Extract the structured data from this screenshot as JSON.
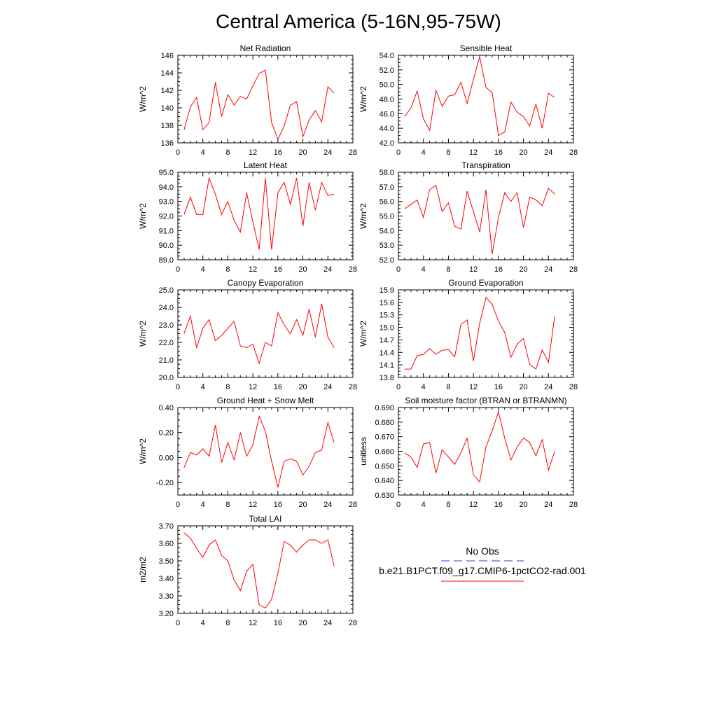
{
  "figure": {
    "title": "Central America (5-16N,95-75W)"
  },
  "legend": {
    "obs_label": "No Obs",
    "model_label": "b.e21.B1PCT.f09_g17.CMIP6-1pctCO2-rad.001",
    "obs_color": "#3a3ad0",
    "model_color": "#ff0000"
  },
  "chart_data": [
    {
      "type": "line",
      "title": "Net Radiation",
      "ylabel": "W/m^2",
      "xlim": [
        0,
        28
      ],
      "ylim": [
        136,
        146
      ],
      "xticks": [
        0,
        4,
        8,
        12,
        16,
        20,
        24,
        28
      ],
      "yticks": [
        "136",
        "138",
        "140",
        "142",
        "144",
        "146"
      ],
      "grid": false,
      "series": [
        {
          "color": "#ff0000",
          "x": [
            1,
            2,
            3,
            4,
            5,
            6,
            7,
            8,
            9,
            10,
            11,
            12,
            13,
            14,
            15,
            16,
            17,
            18,
            19,
            20,
            21,
            22,
            23,
            24,
            25
          ],
          "y": [
            137.5,
            140.1,
            141.2,
            137.5,
            138.3,
            142.9,
            139.0,
            141.5,
            140.3,
            141.3,
            141.0,
            142.5,
            143.9,
            144.3,
            138.3,
            136.4,
            137.9,
            140.3,
            140.7,
            136.7,
            138.6,
            139.7,
            138.4,
            142.4,
            141.7
          ]
        }
      ]
    },
    {
      "type": "line",
      "title": "Sensible Heat",
      "ylabel": "W/m^2",
      "xlim": [
        0,
        28
      ],
      "ylim": [
        42,
        54
      ],
      "xticks": [
        0,
        4,
        8,
        12,
        16,
        20,
        24,
        28
      ],
      "yticks": [
        "42.0",
        "44.0",
        "46.0",
        "48.0",
        "50.0",
        "52.0",
        "54.0"
      ],
      "grid": false,
      "series": [
        {
          "color": "#ff0000",
          "x": [
            1,
            2,
            3,
            4,
            5,
            6,
            7,
            8,
            9,
            10,
            11,
            12,
            13,
            14,
            15,
            16,
            17,
            18,
            19,
            20,
            21,
            22,
            23,
            24,
            25
          ],
          "y": [
            45.6,
            46.8,
            49.1,
            45.3,
            43.7,
            49.2,
            47.0,
            48.4,
            48.6,
            50.3,
            47.4,
            50.7,
            53.8,
            49.6,
            48.9,
            43.0,
            43.5,
            47.6,
            46.2,
            45.6,
            44.3,
            47.3,
            44.0,
            48.8,
            48.2
          ]
        }
      ]
    },
    {
      "type": "line",
      "title": "Latent Heat",
      "ylabel": "W/m^2",
      "xlim": [
        0,
        28
      ],
      "ylim": [
        89,
        95
      ],
      "xticks": [
        0,
        4,
        8,
        12,
        16,
        20,
        24,
        28
      ],
      "yticks": [
        "89.0",
        "90.0",
        "91.0",
        "92.0",
        "93.0",
        "94.0",
        "95.0"
      ],
      "grid": false,
      "series": [
        {
          "color": "#ff0000",
          "x": [
            1,
            2,
            3,
            4,
            5,
            6,
            7,
            8,
            9,
            10,
            11,
            12,
            13,
            14,
            15,
            16,
            17,
            18,
            19,
            20,
            21,
            22,
            23,
            24,
            25
          ],
          "y": [
            92.1,
            93.3,
            92.1,
            92.1,
            94.6,
            93.5,
            92.1,
            93.0,
            91.7,
            90.9,
            93.6,
            91.6,
            89.7,
            94.6,
            89.7,
            93.6,
            94.3,
            92.8,
            94.6,
            91.3,
            94.3,
            92.4,
            94.3,
            93.4,
            93.5
          ]
        }
      ]
    },
    {
      "type": "line",
      "title": "Transpiration",
      "ylabel": "W/m^2",
      "xlim": [
        0,
        28
      ],
      "ylim": [
        52,
        58
      ],
      "xticks": [
        0,
        4,
        8,
        12,
        16,
        20,
        24,
        28
      ],
      "yticks": [
        "52.0",
        "53.0",
        "54.0",
        "55.0",
        "56.0",
        "57.0",
        "58.0"
      ],
      "grid": false,
      "series": [
        {
          "color": "#ff0000",
          "x": [
            1,
            2,
            3,
            4,
            5,
            6,
            7,
            8,
            9,
            10,
            11,
            12,
            13,
            14,
            15,
            16,
            17,
            18,
            19,
            20,
            21,
            22,
            23,
            24,
            25
          ],
          "y": [
            55.5,
            55.8,
            56.1,
            54.9,
            56.8,
            57.1,
            55.3,
            55.9,
            54.3,
            54.1,
            56.7,
            55.3,
            53.9,
            56.8,
            52.4,
            54.9,
            56.6,
            56.0,
            56.6,
            54.2,
            56.3,
            56.1,
            55.7,
            56.9,
            56.5
          ]
        }
      ]
    },
    {
      "type": "line",
      "title": "Canopy Evaporation",
      "ylabel": "W/m^2",
      "xlim": [
        0,
        28
      ],
      "ylim": [
        20,
        25
      ],
      "xticks": [
        0,
        4,
        8,
        12,
        16,
        20,
        24,
        28
      ],
      "yticks": [
        "20.0",
        "21.0",
        "22.0",
        "23.0",
        "24.0",
        "25.0"
      ],
      "grid": false,
      "series": [
        {
          "color": "#ff0000",
          "x": [
            1,
            2,
            3,
            4,
            5,
            6,
            7,
            8,
            9,
            10,
            11,
            12,
            13,
            14,
            15,
            16,
            17,
            18,
            19,
            20,
            21,
            22,
            23,
            24,
            25
          ],
          "y": [
            22.5,
            23.5,
            21.7,
            22.8,
            23.3,
            22.1,
            22.4,
            22.8,
            23.2,
            21.8,
            21.7,
            21.9,
            20.8,
            22.0,
            21.8,
            23.7,
            23.0,
            22.5,
            23.3,
            22.4,
            23.9,
            22.3,
            24.2,
            22.3,
            21.7
          ]
        }
      ]
    },
    {
      "type": "line",
      "title": "Ground Evaporation",
      "ylabel": "W/m^2",
      "xlim": [
        0,
        28
      ],
      "ylim": [
        13.8,
        15.9
      ],
      "xticks": [
        0,
        4,
        8,
        12,
        16,
        20,
        24,
        28
      ],
      "yticks": [
        "13.8",
        "14.1",
        "14.4",
        "14.7",
        "15.0",
        "15.3",
        "15.6",
        "15.9"
      ],
      "grid": false,
      "series": [
        {
          "color": "#ff0000",
          "x": [
            1,
            2,
            3,
            4,
            5,
            6,
            7,
            8,
            9,
            10,
            11,
            12,
            13,
            14,
            15,
            16,
            17,
            18,
            19,
            20,
            21,
            22,
            23,
            24,
            25
          ],
          "y": [
            14.0,
            14.0,
            14.32,
            14.35,
            14.49,
            14.36,
            14.45,
            14.47,
            14.29,
            15.07,
            15.18,
            14.19,
            15.1,
            15.72,
            15.55,
            15.15,
            14.88,
            14.28,
            14.6,
            14.73,
            14.11,
            14.0,
            14.46,
            14.16,
            15.27
          ]
        }
      ]
    },
    {
      "type": "line",
      "title": "Ground Heat + Snow Melt",
      "ylabel": "W/m^2",
      "xlim": [
        0,
        28
      ],
      "ylim": [
        -0.3,
        0.4
      ],
      "xticks": [
        0,
        4,
        8,
        12,
        16,
        20,
        24,
        28
      ],
      "yticks": [
        "-0.20",
        "0.00",
        "0.20",
        "0.40"
      ],
      "ytick_values": [
        -0.2,
        0.0,
        0.2,
        0.4
      ],
      "grid": false,
      "series": [
        {
          "color": "#ff0000",
          "x": [
            1,
            2,
            3,
            4,
            5,
            6,
            7,
            8,
            9,
            10,
            11,
            12,
            13,
            14,
            15,
            16,
            17,
            18,
            19,
            20,
            21,
            22,
            23,
            24,
            25
          ],
          "y": [
            -0.08,
            0.04,
            0.02,
            0.07,
            0.01,
            0.26,
            -0.04,
            0.12,
            -0.02,
            0.2,
            0.01,
            0.1,
            0.33,
            0.21,
            -0.03,
            -0.24,
            -0.03,
            -0.01,
            -0.03,
            -0.14,
            -0.07,
            0.04,
            0.06,
            0.28,
            0.12
          ]
        }
      ]
    },
    {
      "type": "line",
      "title": "Soil moisture factor (BTRAN or BTRANMN)",
      "ylabel": "unitless",
      "xlim": [
        0,
        28
      ],
      "ylim": [
        0.63,
        0.69
      ],
      "xticks": [
        0,
        4,
        8,
        12,
        16,
        20,
        24,
        28
      ],
      "yticks": [
        "0.630",
        "0.640",
        "0.650",
        "0.660",
        "0.670",
        "0.680",
        "0.690"
      ],
      "grid": false,
      "series": [
        {
          "color": "#ff0000",
          "x": [
            1,
            2,
            3,
            4,
            5,
            6,
            7,
            8,
            9,
            10,
            11,
            12,
            13,
            14,
            15,
            16,
            17,
            18,
            19,
            20,
            21,
            22,
            23,
            24,
            25
          ],
          "y": [
            0.659,
            0.656,
            0.649,
            0.665,
            0.666,
            0.645,
            0.661,
            0.656,
            0.651,
            0.659,
            0.669,
            0.644,
            0.639,
            0.663,
            0.674,
            0.687,
            0.669,
            0.654,
            0.663,
            0.669,
            0.666,
            0.657,
            0.668,
            0.647,
            0.66
          ]
        }
      ]
    },
    {
      "type": "line",
      "title": "Total LAI",
      "ylabel": "m2/m2",
      "xlim": [
        0,
        28
      ],
      "ylim": [
        3.2,
        3.7
      ],
      "xticks": [
        0,
        4,
        8,
        12,
        16,
        20,
        24,
        28
      ],
      "yticks": [
        "3.20",
        "3.30",
        "3.40",
        "3.50",
        "3.60",
        "3.70"
      ],
      "grid": false,
      "series": [
        {
          "color": "#ff0000",
          "x": [
            1,
            2,
            3,
            4,
            5,
            6,
            7,
            8,
            9,
            10,
            11,
            12,
            13,
            14,
            15,
            16,
            17,
            18,
            19,
            20,
            21,
            22,
            23,
            24,
            25
          ],
          "y": [
            3.66,
            3.63,
            3.57,
            3.52,
            3.59,
            3.62,
            3.53,
            3.5,
            3.39,
            3.33,
            3.44,
            3.48,
            3.25,
            3.23,
            3.28,
            3.43,
            3.61,
            3.59,
            3.55,
            3.59,
            3.62,
            3.62,
            3.6,
            3.62,
            3.47
          ]
        }
      ]
    }
  ]
}
